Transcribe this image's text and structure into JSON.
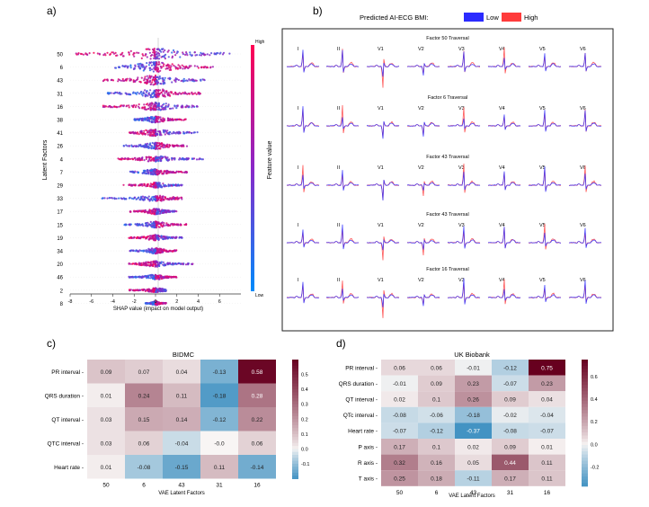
{
  "panel_labels": {
    "a": "a)",
    "b": "b)",
    "c": "c)",
    "d": "d)"
  },
  "chart_data": [
    {
      "type": "scatter",
      "subtype": "shap-beeswarm",
      "panel": "a",
      "title": "",
      "xlabel": "SHAP value (impact on model output)",
      "ylabel": "Latent Factors",
      "xlim": [
        -8,
        8
      ],
      "xticks": [
        "-8",
        "-6",
        "-4",
        "-2",
        "0",
        "2",
        "4",
        "6"
      ],
      "categories": [
        "50",
        "6",
        "43",
        "31",
        "16",
        "38",
        "41",
        "26",
        "4",
        "7",
        "29",
        "33",
        "17",
        "15",
        "19",
        "34",
        "20",
        "46",
        "2",
        "8"
      ],
      "spread": [
        {
          "factor": "50",
          "min": -7.5,
          "max": 7.0,
          "width": 1.0
        },
        {
          "factor": "6",
          "min": -4.0,
          "max": 5.5,
          "width": 0.9
        },
        {
          "factor": "43",
          "min": -5.0,
          "max": 4.8,
          "width": 0.85
        },
        {
          "factor": "31",
          "min": -4.5,
          "max": 4.3,
          "width": 0.8
        },
        {
          "factor": "16",
          "min": -5.0,
          "max": 4.2,
          "width": 0.7
        },
        {
          "factor": "38",
          "min": -2.0,
          "max": 3.0,
          "width": 0.55
        },
        {
          "factor": "41",
          "min": -2.5,
          "max": 4.0,
          "width": 0.6
        },
        {
          "factor": "26",
          "min": -3.0,
          "max": 3.0,
          "width": 0.6
        },
        {
          "factor": "4",
          "min": -3.5,
          "max": 4.5,
          "width": 0.5
        },
        {
          "factor": "7",
          "min": -2.5,
          "max": 3.0,
          "width": 0.55
        },
        {
          "factor": "29",
          "min": -3.0,
          "max": 2.5,
          "width": 0.5
        },
        {
          "factor": "33",
          "min": -5.0,
          "max": 2.5,
          "width": 0.5
        },
        {
          "factor": "17",
          "min": -2.5,
          "max": 2.0,
          "width": 0.5
        },
        {
          "factor": "15",
          "min": -3.0,
          "max": 3.0,
          "width": 0.55
        },
        {
          "factor": "19",
          "min": -2.5,
          "max": 2.5,
          "width": 0.5
        },
        {
          "factor": "34",
          "min": -2.5,
          "max": 2.0,
          "width": 0.5
        },
        {
          "factor": "20",
          "min": -2.5,
          "max": 3.5,
          "width": 0.5
        },
        {
          "factor": "46",
          "min": -2.5,
          "max": 2.0,
          "width": 0.45
        },
        {
          "factor": "2",
          "min": -2.5,
          "max": 1.0,
          "width": 0.4
        },
        {
          "factor": "8",
          "min": -1.0,
          "max": 1.0,
          "width": 0.35
        }
      ],
      "colorbar": {
        "label": "Feature value",
        "high": "High",
        "low": "Low"
      }
    },
    {
      "type": "line",
      "subtype": "ecg-traversal-grid",
      "panel": "b",
      "legend_title": "Predicted AI-ECG BMI:",
      "legend": [
        {
          "name": "Low",
          "color": "#2b2bff"
        },
        {
          "name": "High",
          "color": "#ff3b3b"
        }
      ],
      "leads": [
        "I",
        "II",
        "V1",
        "V2",
        "V3",
        "V4",
        "V5",
        "V6"
      ],
      "rows": [
        {
          "title": "Factor 50 Traversal"
        },
        {
          "title": "Factor 6 Traversal"
        },
        {
          "title": "Factor 43 Traversal"
        },
        {
          "title": "Factor 43 Traversal"
        },
        {
          "title": "Factor 16 Traversal"
        }
      ]
    },
    {
      "type": "heatmap",
      "panel": "c",
      "title": "BIDMC",
      "xlabel": "VAE Latent Factors",
      "ylabel": "",
      "x": [
        "50",
        "6",
        "43",
        "31",
        "16"
      ],
      "y": [
        "PR interval",
        "QRS duration",
        "QT interval",
        "QTC interval",
        "Heart rate"
      ],
      "values": [
        [
          0.09,
          0.07,
          0.04,
          -0.13,
          0.58
        ],
        [
          0.01,
          0.24,
          0.11,
          -0.18,
          0.28
        ],
        [
          0.03,
          0.15,
          0.14,
          -0.12,
          0.22
        ],
        [
          0.03,
          0.06,
          -0.04,
          -0.0,
          0.06
        ],
        [
          0.01,
          -0.08,
          -0.15,
          0.11,
          -0.14
        ]
      ],
      "labels": [
        [
          "0.09",
          "0.07",
          "0.04",
          "-0.13",
          "0.58"
        ],
        [
          "0.01",
          "0.24",
          "0.11",
          "-0.18",
          "0.28"
        ],
        [
          "0.03",
          "0.15",
          "0.14",
          "-0.12",
          "0.22"
        ],
        [
          "0.03",
          "0.06",
          "-0.04",
          "-0.0",
          "0.06"
        ],
        [
          "0.01",
          "-0.08",
          "-0.15",
          "0.11",
          "-0.14"
        ]
      ],
      "vmin": -0.2,
      "vmax": 0.6,
      "colorbar_ticks": [
        "0.5",
        "0.4",
        "0.3",
        "0.2",
        "0.1",
        "0.0",
        "-0.1"
      ]
    },
    {
      "type": "heatmap",
      "panel": "d",
      "title": "UK Biobank",
      "xlabel": "VAE Latent Factors",
      "ylabel": "",
      "x": [
        "50",
        "6",
        "43",
        "31",
        "16"
      ],
      "y": [
        "PR interval",
        "QRS duration",
        "QT interval",
        "QTc interval",
        "Heart rate",
        "P axis",
        "R axis",
        "T axis"
      ],
      "values": [
        [
          0.06,
          0.06,
          -0.01,
          -0.12,
          0.75
        ],
        [
          -0.01,
          0.09,
          0.23,
          -0.07,
          0.23
        ],
        [
          0.02,
          0.1,
          0.26,
          0.09,
          0.04
        ],
        [
          -0.08,
          -0.06,
          -0.18,
          -0.02,
          -0.04
        ],
        [
          -0.07,
          -0.12,
          -0.37,
          -0.08,
          -0.07
        ],
        [
          0.17,
          0.1,
          0.02,
          0.09,
          0.01
        ],
        [
          0.32,
          0.16,
          0.05,
          0.44,
          0.11
        ],
        [
          0.25,
          0.18,
          -0.11,
          0.17,
          0.11
        ]
      ],
      "labels": [
        [
          "0.06",
          "0.06",
          "-0.01",
          "-0.12",
          "0.75"
        ],
        [
          "-0.01",
          "0.09",
          "0.23",
          "-0.07",
          "0.23"
        ],
        [
          "0.02",
          "0.1",
          "0.26",
          "0.09",
          "0.04"
        ],
        [
          "-0.08",
          "-0.06",
          "-0.18",
          "-0.02",
          "-0.04"
        ],
        [
          "-0.07",
          "-0.12",
          "-0.37",
          "-0.08",
          "-0.07"
        ],
        [
          "0.17",
          "0.1",
          "0.02",
          "0.09",
          "0.01"
        ],
        [
          "0.32",
          "0.16",
          "0.05",
          "0.44",
          "0.11"
        ],
        [
          "0.25",
          "0.18",
          "-0.11",
          "0.17",
          "0.11"
        ]
      ],
      "vmin": -0.37,
      "vmax": 0.75,
      "colorbar_ticks": [
        "0.6",
        "0.4",
        "0.2",
        "0.0",
        "-0.2"
      ]
    }
  ]
}
